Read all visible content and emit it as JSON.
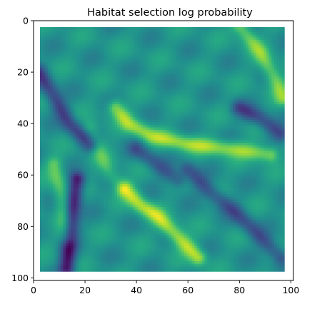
{
  "chart_data": {
    "type": "heatmap",
    "title": "Habitat selection log probability",
    "xlabel": "",
    "ylabel": "",
    "colormap": "viridis",
    "xlim": [
      0,
      101
    ],
    "ylim": [
      101,
      0
    ],
    "y_axis_inverted": true,
    "xticks": [
      0,
      20,
      40,
      60,
      80,
      100
    ],
    "yticks": [
      0,
      20,
      40,
      60,
      80,
      100
    ],
    "data_extent": {
      "x": [
        2.5,
        97.5
      ],
      "y": [
        2.5,
        97.5
      ]
    },
    "grid": false,
    "colorbar": false,
    "features": [
      {
        "description": "bright yellow ridge",
        "points": [
          [
            32,
            34
          ],
          [
            37,
            40
          ],
          [
            46,
            45
          ],
          [
            60,
            48
          ],
          [
            78,
            50
          ],
          [
            92,
            52
          ]
        ],
        "level": 0.85
      },
      {
        "description": "bright yellow patch",
        "points": [
          [
            36,
            66
          ],
          [
            42,
            72
          ],
          [
            48,
            76
          ],
          [
            56,
            84
          ],
          [
            64,
            92
          ]
        ],
        "level": 0.9
      },
      {
        "description": "bright diagonal top-right",
        "points": [
          [
            80,
            2
          ],
          [
            88,
            12
          ],
          [
            95,
            25
          ],
          [
            97,
            30
          ]
        ],
        "level": 0.8
      },
      {
        "description": "light ridge left",
        "points": [
          [
            8,
            56
          ],
          [
            10,
            64
          ],
          [
            12,
            74
          ],
          [
            13,
            84
          ]
        ],
        "level": 0.75
      },
      {
        "description": "light ridge centre",
        "points": [
          [
            22,
            42
          ],
          [
            26,
            52
          ],
          [
            30,
            60
          ],
          [
            34,
            64
          ]
        ],
        "level": 0.7
      },
      {
        "description": "dark trough left",
        "points": [
          [
            17,
            62
          ],
          [
            15,
            74
          ],
          [
            14,
            86
          ],
          [
            13,
            96
          ]
        ],
        "level": 0.05
      },
      {
        "description": "dark band top-left",
        "points": [
          [
            2,
            20
          ],
          [
            8,
            30
          ],
          [
            14,
            40
          ],
          [
            22,
            48
          ]
        ],
        "level": 0.2
      },
      {
        "description": "dark band right",
        "points": [
          [
            80,
            34
          ],
          [
            88,
            38
          ],
          [
            96,
            44
          ]
        ],
        "level": 0.22
      },
      {
        "description": "dark diagonal lower right",
        "points": [
          [
            60,
            58
          ],
          [
            68,
            66
          ],
          [
            78,
            74
          ],
          [
            88,
            84
          ],
          [
            96,
            92
          ]
        ],
        "level": 0.25
      },
      {
        "description": "dark band centre",
        "points": [
          [
            40,
            50
          ],
          [
            48,
            56
          ],
          [
            56,
            62
          ]
        ],
        "level": 0.28
      }
    ],
    "base_level": 0.52
  }
}
